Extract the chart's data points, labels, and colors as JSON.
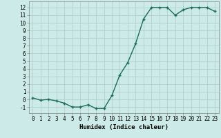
{
  "x": [
    0,
    1,
    2,
    3,
    4,
    5,
    6,
    7,
    8,
    9,
    10,
    11,
    12,
    13,
    14,
    15,
    16,
    17,
    18,
    19,
    20,
    21,
    22,
    23
  ],
  "y": [
    0.2,
    -0.1,
    0.0,
    -0.2,
    -0.5,
    -1.0,
    -1.0,
    -0.7,
    -1.2,
    -1.2,
    0.5,
    3.2,
    4.8,
    7.3,
    10.5,
    12.0,
    12.0,
    12.0,
    11.0,
    11.7,
    12.0,
    12.0,
    12.0,
    11.5
  ],
  "line_color": "#1a6b5a",
  "marker": "+",
  "marker_size": 3,
  "background_color": "#cceae7",
  "grid_color": "#b0d0cc",
  "xlabel": "Humidex (Indice chaleur)",
  "xlim": [
    -0.5,
    23.5
  ],
  "ylim": [
    -1.8,
    12.8
  ],
  "yticks": [
    -1,
    0,
    1,
    2,
    3,
    4,
    5,
    6,
    7,
    8,
    9,
    10,
    11,
    12
  ],
  "xticks": [
    0,
    1,
    2,
    3,
    4,
    5,
    6,
    7,
    8,
    9,
    10,
    11,
    12,
    13,
    14,
    15,
    16,
    17,
    18,
    19,
    20,
    21,
    22,
    23
  ],
  "xlabel_fontsize": 6.5,
  "tick_fontsize": 5.5,
  "line_width": 1.0
}
